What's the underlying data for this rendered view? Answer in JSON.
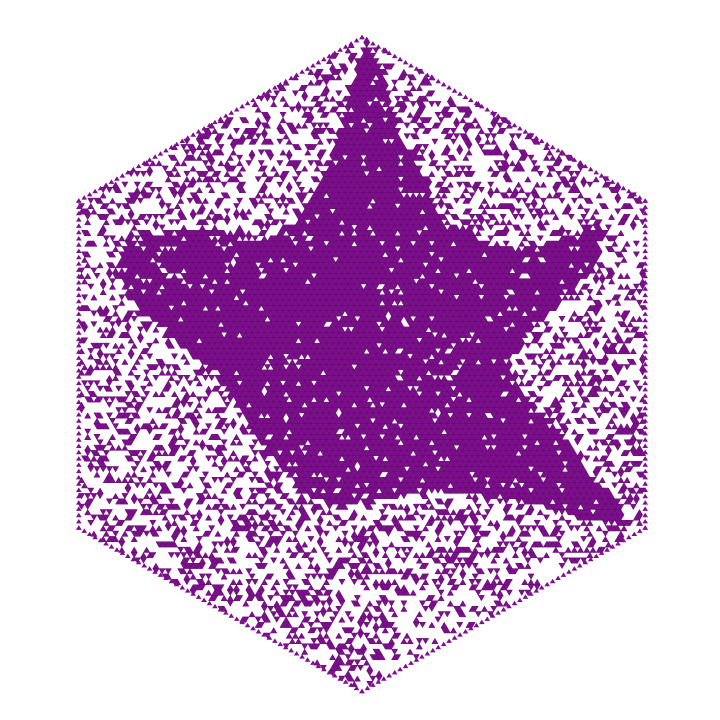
{
  "figure": {
    "subject": "hexagonal-triangle-lattice",
    "shape": "hexagon",
    "cell_shape": "triangle",
    "fill_color": "#7f0f8f",
    "edge_color": "#5e0a6b",
    "background_color": "#ffffff",
    "cluster_shape": "irregular-star",
    "cluster_color": "#7f0f8f"
  }
}
